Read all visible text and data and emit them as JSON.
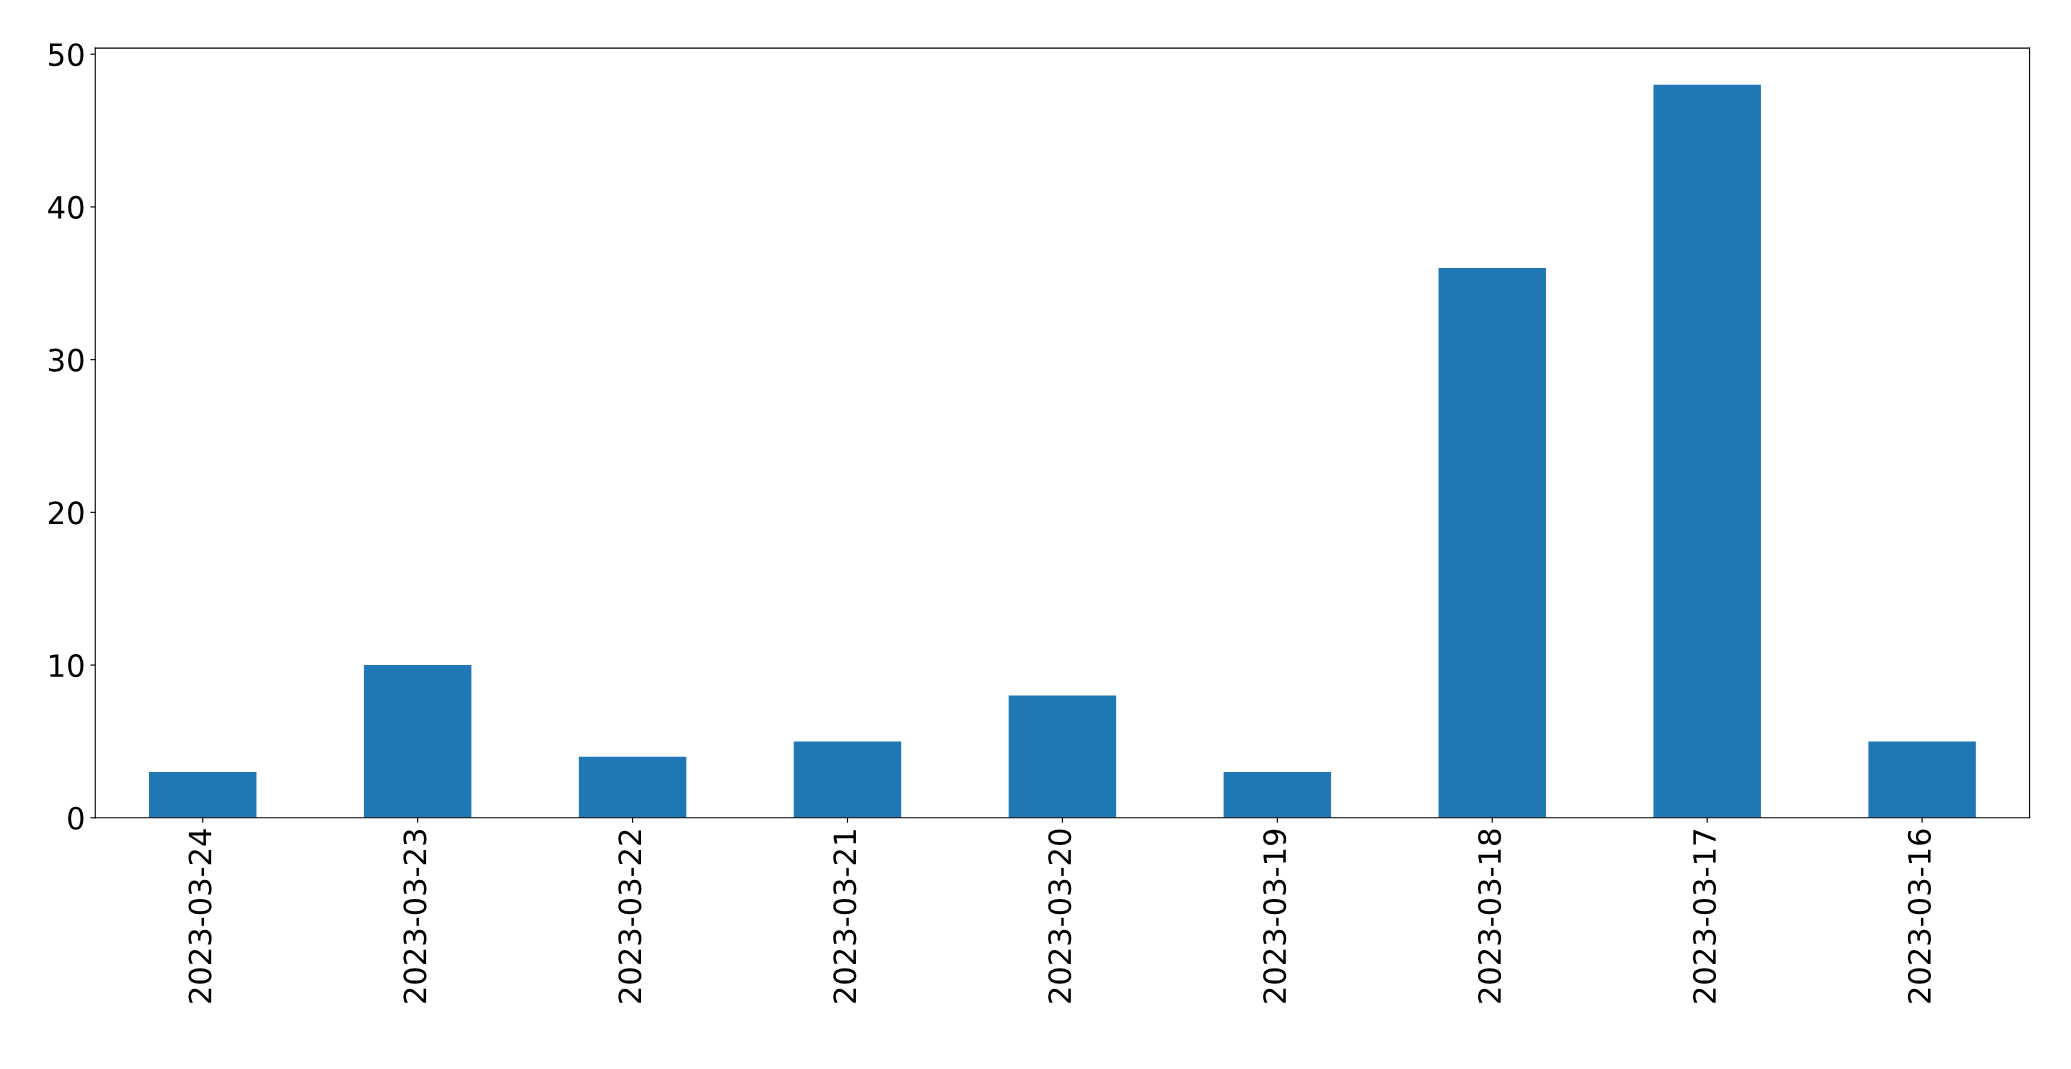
{
  "chart_data": {
    "type": "bar",
    "categories": [
      "2023-03-24",
      "2023-03-23",
      "2023-03-22",
      "2023-03-21",
      "2023-03-20",
      "2023-03-19",
      "2023-03-18",
      "2023-03-17",
      "2023-03-16"
    ],
    "values": [
      3,
      10,
      4,
      5,
      8,
      3,
      36,
      48,
      5
    ],
    "color": "#1f77b4",
    "ylim": [
      0,
      50.4
    ],
    "yticks": [
      0,
      10,
      20,
      30,
      40,
      50
    ],
    "grid": false,
    "legend": false
  }
}
